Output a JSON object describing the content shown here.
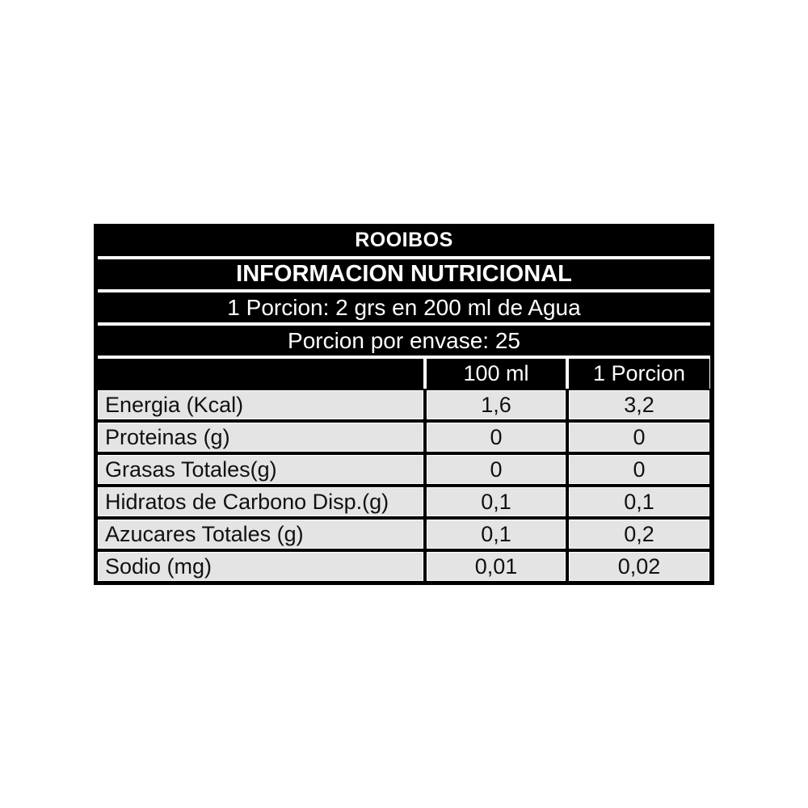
{
  "table": {
    "title": "ROOIBOS",
    "subtitle": "INFORMACION NUTRICIONAL",
    "serving_info": "1 Porcion: 2 grs en 200 ml de Agua",
    "servings_per_container": "Porcion por envase: 25",
    "columns": {
      "label": "",
      "col_100ml": "100 ml",
      "col_porcion": "1 Porcion"
    },
    "rows": [
      {
        "label": "Energia (Kcal)",
        "per_100ml": "1,6",
        "per_porcion": "3,2"
      },
      {
        "label": "Proteinas (g)",
        "per_100ml": "0",
        "per_porcion": "0"
      },
      {
        "label": "Grasas Totales(g)",
        "per_100ml": "0",
        "per_porcion": "0"
      },
      {
        "label": "Hidratos de Carbono Disp.(g)",
        "per_100ml": "0,1",
        "per_porcion": "0,1"
      },
      {
        "label": "Azucares Totales (g)",
        "per_100ml": "0,1",
        "per_porcion": "0,2"
      },
      {
        "label": "Sodio (mg)",
        "per_100ml": "0,01",
        "per_porcion": "0,02"
      }
    ],
    "colors": {
      "band_bg": "#000000",
      "band_text": "#ffffff",
      "cell_bg": "#e4e4e4",
      "cell_text": "#111111",
      "page_bg": "#ffffff"
    }
  }
}
